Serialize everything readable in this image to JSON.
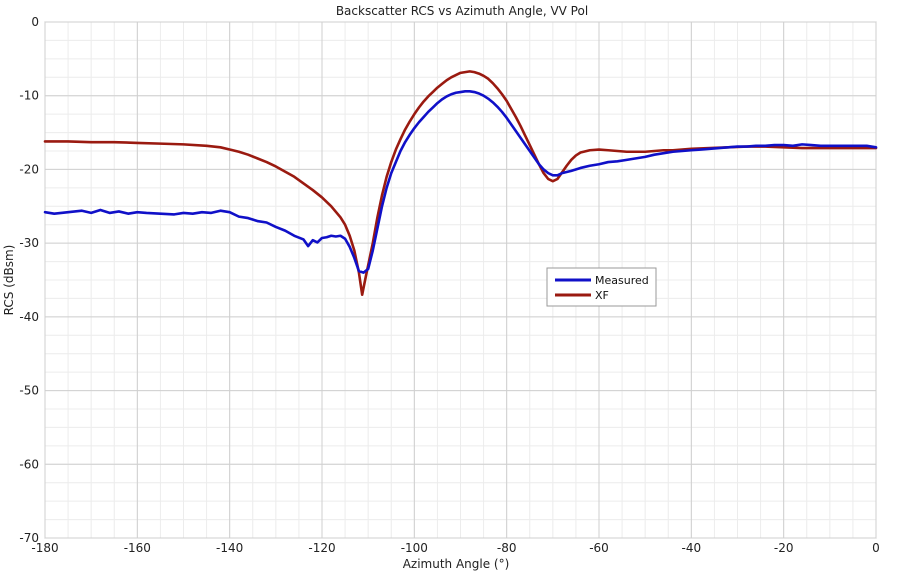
{
  "chart_data": {
    "type": "line",
    "title": "Backscatter RCS vs Azimuth Angle, VV Pol",
    "xlabel": "Azimuth Angle (°)",
    "ylabel": "RCS (dBsm)",
    "xlim": [
      -180,
      0
    ],
    "ylim": [
      -70,
      0
    ],
    "xticks": [
      -180,
      -160,
      -140,
      -120,
      -100,
      -80,
      -60,
      -40,
      -20,
      0
    ],
    "yticks": [
      0,
      -10,
      -20,
      -30,
      -40,
      -50,
      -60,
      -70
    ],
    "grid": true,
    "legend_position": "center-right",
    "series": [
      {
        "name": "Measured",
        "color": "#1010c8",
        "points": [
          [
            -180,
            -25.8
          ],
          [
            -178,
            -26.0
          ],
          [
            -175,
            -25.8
          ],
          [
            -172,
            -25.6
          ],
          [
            -170,
            -25.9
          ],
          [
            -168,
            -25.5
          ],
          [
            -166,
            -25.9
          ],
          [
            -164,
            -25.7
          ],
          [
            -162,
            -26.0
          ],
          [
            -160,
            -25.8
          ],
          [
            -158,
            -25.9
          ],
          [
            -155,
            -26.0
          ],
          [
            -152,
            -26.1
          ],
          [
            -150,
            -25.9
          ],
          [
            -148,
            -26.0
          ],
          [
            -146,
            -25.8
          ],
          [
            -144,
            -25.9
          ],
          [
            -142,
            -25.6
          ],
          [
            -140,
            -25.8
          ],
          [
            -138,
            -26.4
          ],
          [
            -136,
            -26.6
          ],
          [
            -134,
            -27.0
          ],
          [
            -132,
            -27.2
          ],
          [
            -130,
            -27.8
          ],
          [
            -128,
            -28.3
          ],
          [
            -126,
            -29.0
          ],
          [
            -124,
            -29.5
          ],
          [
            -123,
            -30.4
          ],
          [
            -122,
            -29.6
          ],
          [
            -121,
            -29.9
          ],
          [
            -120,
            -29.3
          ],
          [
            -119,
            -29.2
          ],
          [
            -118,
            -29.0
          ],
          [
            -117,
            -29.1
          ],
          [
            -116,
            -29.0
          ],
          [
            -115,
            -29.4
          ],
          [
            -114,
            -30.5
          ],
          [
            -113,
            -32.0
          ],
          [
            -112,
            -33.8
          ],
          [
            -111,
            -34.0
          ],
          [
            -110,
            -33.5
          ],
          [
            -109,
            -31.0
          ],
          [
            -108,
            -28.0
          ],
          [
            -107,
            -25.0
          ],
          [
            -106,
            -22.5
          ],
          [
            -105,
            -20.5
          ],
          [
            -104,
            -19.0
          ],
          [
            -103,
            -17.5
          ],
          [
            -102,
            -16.3
          ],
          [
            -101,
            -15.3
          ],
          [
            -100,
            -14.4
          ],
          [
            -99,
            -13.6
          ],
          [
            -98,
            -12.9
          ],
          [
            -97,
            -12.2
          ],
          [
            -96,
            -11.6
          ],
          [
            -95,
            -11.0
          ],
          [
            -94,
            -10.5
          ],
          [
            -93,
            -10.1
          ],
          [
            -92,
            -9.8
          ],
          [
            -91,
            -9.6
          ],
          [
            -90,
            -9.5
          ],
          [
            -89,
            -9.4
          ],
          [
            -88,
            -9.4
          ],
          [
            -87,
            -9.5
          ],
          [
            -86,
            -9.7
          ],
          [
            -85,
            -10.0
          ],
          [
            -84,
            -10.4
          ],
          [
            -83,
            -10.9
          ],
          [
            -82,
            -11.5
          ],
          [
            -81,
            -12.2
          ],
          [
            -80,
            -13.0
          ],
          [
            -79,
            -13.9
          ],
          [
            -78,
            -14.8
          ],
          [
            -77,
            -15.7
          ],
          [
            -76,
            -16.6
          ],
          [
            -75,
            -17.5
          ],
          [
            -74,
            -18.4
          ],
          [
            -73,
            -19.3
          ],
          [
            -72,
            -20.0
          ],
          [
            -71,
            -20.5
          ],
          [
            -70,
            -20.8
          ],
          [
            -69,
            -20.8
          ],
          [
            -68,
            -20.5
          ],
          [
            -66,
            -20.2
          ],
          [
            -64,
            -19.8
          ],
          [
            -62,
            -19.5
          ],
          [
            -60,
            -19.3
          ],
          [
            -58,
            -19.0
          ],
          [
            -56,
            -18.9
          ],
          [
            -54,
            -18.7
          ],
          [
            -52,
            -18.5
          ],
          [
            -50,
            -18.3
          ],
          [
            -48,
            -18.0
          ],
          [
            -46,
            -17.8
          ],
          [
            -44,
            -17.6
          ],
          [
            -42,
            -17.5
          ],
          [
            -40,
            -17.4
          ],
          [
            -38,
            -17.3
          ],
          [
            -36,
            -17.2
          ],
          [
            -34,
            -17.1
          ],
          [
            -32,
            -17.0
          ],
          [
            -30,
            -16.9
          ],
          [
            -28,
            -16.9
          ],
          [
            -26,
            -16.8
          ],
          [
            -24,
            -16.8
          ],
          [
            -22,
            -16.7
          ],
          [
            -20,
            -16.7
          ],
          [
            -18,
            -16.8
          ],
          [
            -16,
            -16.6
          ],
          [
            -14,
            -16.7
          ],
          [
            -12,
            -16.8
          ],
          [
            -10,
            -16.8
          ],
          [
            -8,
            -16.8
          ],
          [
            -6,
            -16.8
          ],
          [
            -4,
            -16.8
          ],
          [
            -2,
            -16.8
          ],
          [
            0,
            -17.0
          ]
        ]
      },
      {
        "name": "XF",
        "color": "#9a1a10",
        "points": [
          [
            -180,
            -16.2
          ],
          [
            -175,
            -16.2
          ],
          [
            -170,
            -16.3
          ],
          [
            -165,
            -16.3
          ],
          [
            -160,
            -16.4
          ],
          [
            -155,
            -16.5
          ],
          [
            -150,
            -16.6
          ],
          [
            -145,
            -16.8
          ],
          [
            -142,
            -17.0
          ],
          [
            -140,
            -17.3
          ],
          [
            -138,
            -17.6
          ],
          [
            -136,
            -18.0
          ],
          [
            -134,
            -18.5
          ],
          [
            -132,
            -19.0
          ],
          [
            -130,
            -19.6
          ],
          [
            -128,
            -20.3
          ],
          [
            -126,
            -21.0
          ],
          [
            -124,
            -21.9
          ],
          [
            -122,
            -22.8
          ],
          [
            -120,
            -23.8
          ],
          [
            -118,
            -25.0
          ],
          [
            -116,
            -26.5
          ],
          [
            -115,
            -27.5
          ],
          [
            -114,
            -29.0
          ],
          [
            -113,
            -31.0
          ],
          [
            -112,
            -34.0
          ],
          [
            -111.3,
            -37.0
          ],
          [
            -110.5,
            -34.5
          ],
          [
            -110,
            -33.0
          ],
          [
            -109,
            -30.0
          ],
          [
            -108,
            -26.5
          ],
          [
            -107,
            -23.5
          ],
          [
            -106,
            -21.0
          ],
          [
            -105,
            -19.0
          ],
          [
            -104,
            -17.3
          ],
          [
            -103,
            -15.9
          ],
          [
            -102,
            -14.6
          ],
          [
            -101,
            -13.5
          ],
          [
            -100,
            -12.5
          ],
          [
            -99,
            -11.6
          ],
          [
            -98,
            -10.8
          ],
          [
            -97,
            -10.1
          ],
          [
            -96,
            -9.5
          ],
          [
            -95,
            -8.9
          ],
          [
            -94,
            -8.4
          ],
          [
            -93,
            -7.9
          ],
          [
            -92,
            -7.5
          ],
          [
            -91,
            -7.2
          ],
          [
            -90,
            -6.9
          ],
          [
            -89,
            -6.8
          ],
          [
            -88,
            -6.7
          ],
          [
            -87,
            -6.8
          ],
          [
            -86,
            -7.0
          ],
          [
            -85,
            -7.3
          ],
          [
            -84,
            -7.7
          ],
          [
            -83,
            -8.3
          ],
          [
            -82,
            -9.0
          ],
          [
            -81,
            -9.8
          ],
          [
            -80,
            -10.7
          ],
          [
            -79,
            -11.8
          ],
          [
            -78,
            -12.9
          ],
          [
            -77,
            -14.1
          ],
          [
            -76,
            -15.4
          ],
          [
            -75,
            -16.7
          ],
          [
            -74,
            -18.0
          ],
          [
            -73,
            -19.3
          ],
          [
            -72,
            -20.5
          ],
          [
            -71,
            -21.3
          ],
          [
            -70,
            -21.6
          ],
          [
            -69,
            -21.3
          ],
          [
            -68,
            -20.4
          ],
          [
            -67,
            -19.5
          ],
          [
            -66,
            -18.7
          ],
          [
            -65,
            -18.1
          ],
          [
            -64,
            -17.7
          ],
          [
            -62,
            -17.4
          ],
          [
            -60,
            -17.3
          ],
          [
            -58,
            -17.4
          ],
          [
            -56,
            -17.5
          ],
          [
            -54,
            -17.6
          ],
          [
            -52,
            -17.6
          ],
          [
            -50,
            -17.6
          ],
          [
            -48,
            -17.5
          ],
          [
            -46,
            -17.4
          ],
          [
            -44,
            -17.4
          ],
          [
            -42,
            -17.3
          ],
          [
            -40,
            -17.2
          ],
          [
            -36,
            -17.1
          ],
          [
            -32,
            -17.0
          ],
          [
            -28,
            -16.9
          ],
          [
            -24,
            -16.9
          ],
          [
            -20,
            -17.0
          ],
          [
            -16,
            -17.1
          ],
          [
            -12,
            -17.1
          ],
          [
            -8,
            -17.1
          ],
          [
            -4,
            -17.1
          ],
          [
            0,
            -17.1
          ]
        ]
      }
    ]
  }
}
